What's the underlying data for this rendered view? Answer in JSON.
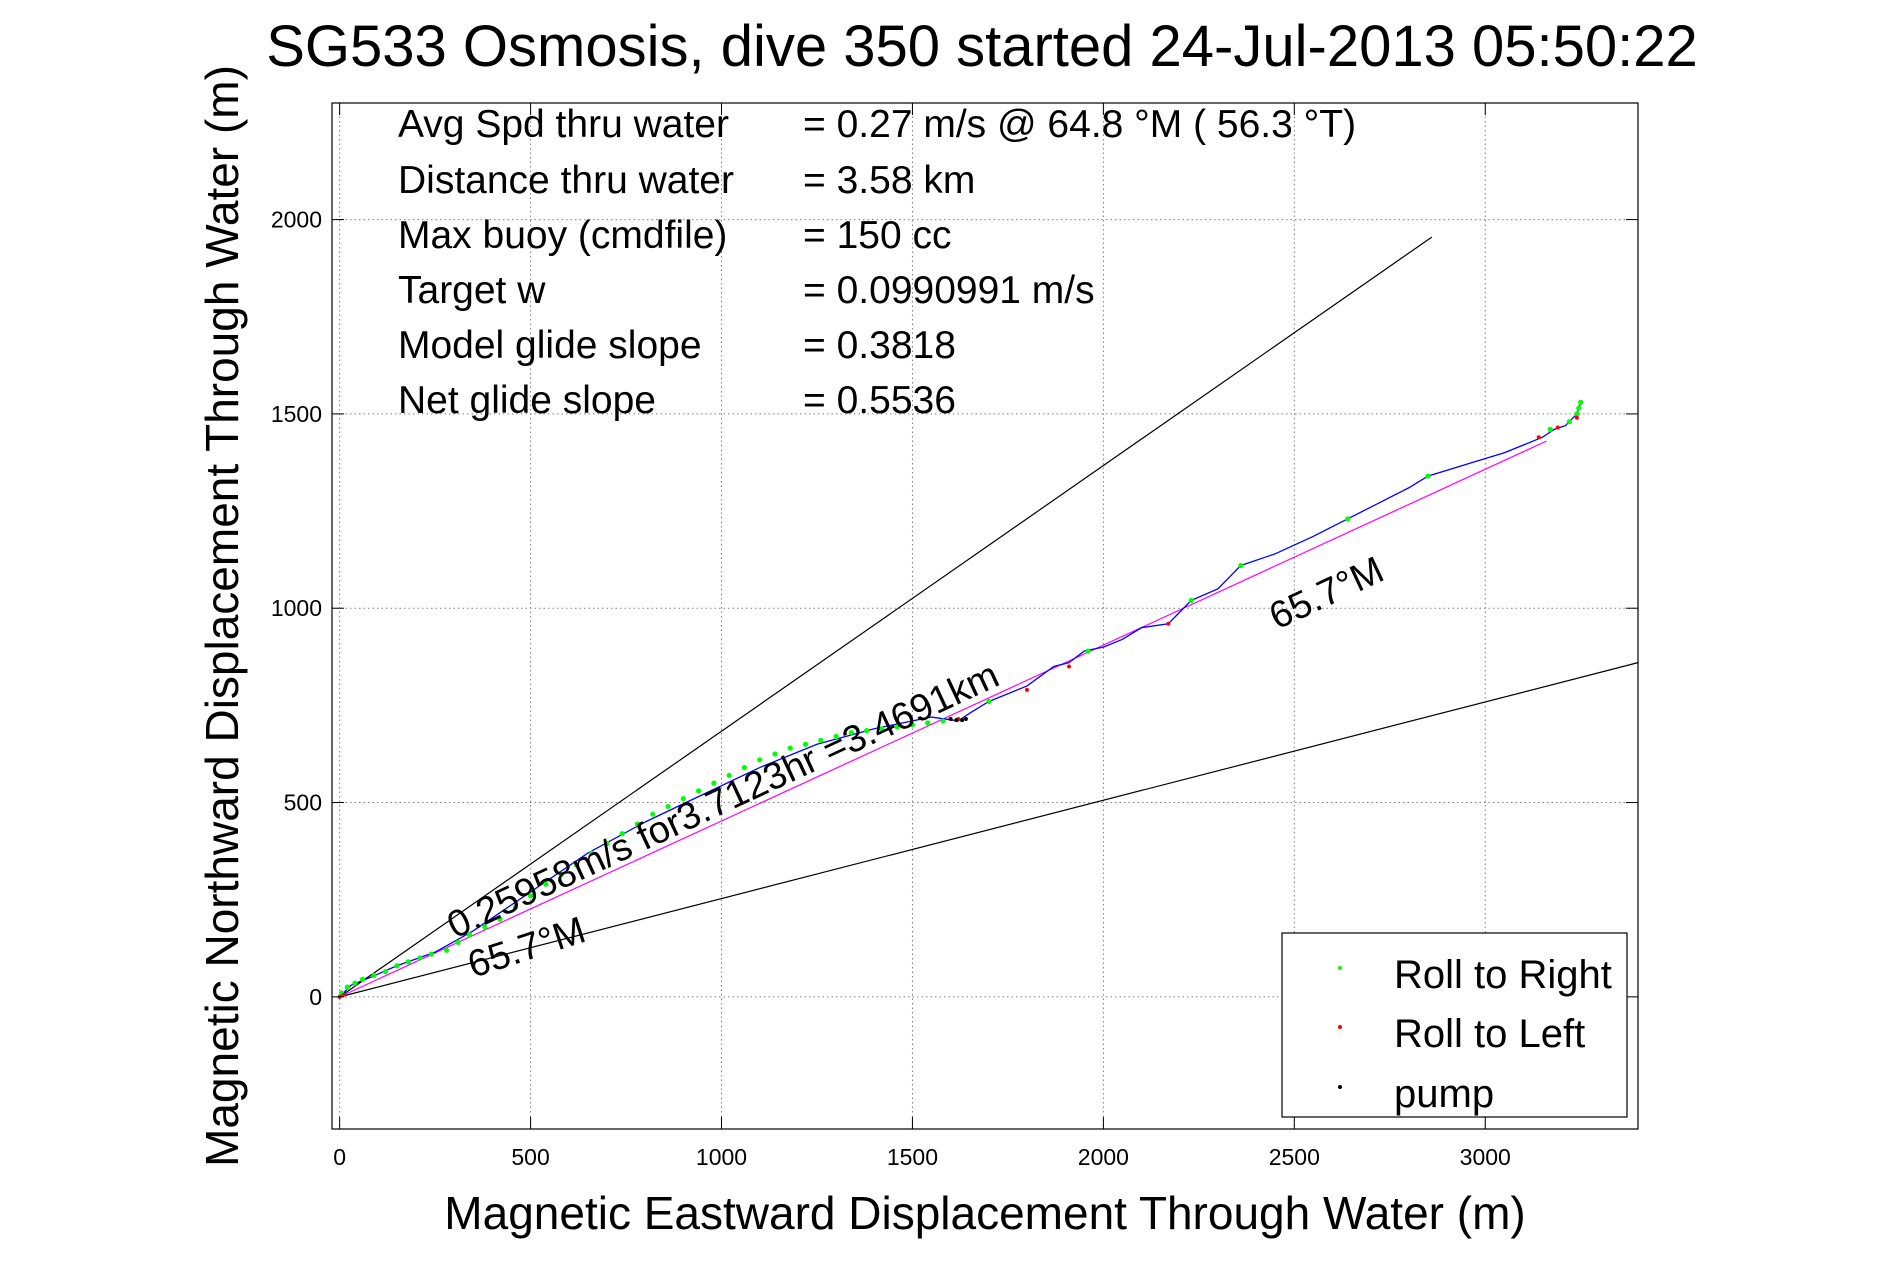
{
  "chart_data": {
    "type": "line",
    "title": "SG533 Osmosis, dive 350 started 24-Jul-2013 05:50:22",
    "xlabel": "Magnetic Eastward Displacement Through Water (m)",
    "ylabel": "Magnetic Northward Displacement Through Water (m)",
    "xlim": [
      -20,
      3400
    ],
    "ylim": [
      -340,
      2300
    ],
    "xticks": [
      0,
      500,
      1000,
      1500,
      2000,
      2500,
      3000
    ],
    "yticks": [
      0,
      500,
      1000,
      1500,
      2000
    ],
    "grid": true,
    "legend_position": "bottom-right",
    "info_lines": [
      {
        "label": "Avg Spd thru water",
        "value": "=  0.27 m/s @  64.8 °M ( 56.3 °T)"
      },
      {
        "label": "Distance thru water",
        "value": "=  3.58 km"
      },
      {
        "label": "Max buoy (cmdfile)",
        "value": "= 150 cc"
      },
      {
        "label": "Target w",
        "value": "= 0.0990991 m/s"
      },
      {
        "label": "Model glide slope",
        "value": "= 0.3818"
      },
      {
        "label": "Net glide slope",
        "value": "= 0.5536"
      }
    ],
    "annotations": {
      "speed": "0.25958m/s for3.7123hr =3.4691km",
      "heading_upper": "65.7°M",
      "heading_lower": "65.7°M"
    },
    "reference_lines": [
      {
        "color": "#000000",
        "x": [
          0,
          2860
        ],
        "y": [
          0,
          1955
        ]
      },
      {
        "color": "#000000",
        "x": [
          0,
          3400
        ],
        "y": [
          0,
          860
        ]
      },
      {
        "color": "#ff00ff",
        "x": [
          0,
          3160
        ],
        "y": [
          0,
          1430
        ]
      }
    ],
    "series": [
      {
        "name": "track",
        "color": "#0000ff",
        "x": [
          0,
          30,
          80,
          150,
          250,
          350,
          500,
          650,
          800,
          950,
          1100,
          1250,
          1400,
          1550,
          1620,
          1650,
          1700,
          1800,
          1870,
          1910,
          1950,
          2000,
          2050,
          2100,
          2170,
          2200,
          2230,
          2300,
          2360,
          2450,
          2550,
          2640,
          2720,
          2800,
          2850,
          2950,
          3050,
          3150,
          3180,
          3210,
          3240,
          3250
        ],
        "y": [
          0,
          30,
          50,
          80,
          115,
          170,
          270,
          370,
          450,
          520,
          590,
          650,
          690,
          720,
          710,
          730,
          760,
          800,
          850,
          860,
          890,
          900,
          920,
          950,
          960,
          990,
          1020,
          1050,
          1110,
          1140,
          1185,
          1230,
          1270,
          1310,
          1340,
          1370,
          1400,
          1440,
          1460,
          1470,
          1500,
          1530
        ]
      },
      {
        "name": "Roll to Right",
        "color": "#00ff00",
        "x": [
          5,
          20,
          40,
          60,
          90,
          120,
          150,
          180,
          210,
          240,
          280,
          310,
          340,
          380,
          420,
          460,
          500,
          540,
          580,
          620,
          660,
          700,
          740,
          780,
          820,
          860,
          900,
          940,
          980,
          1020,
          1060,
          1100,
          1140,
          1180,
          1220,
          1260,
          1300,
          1340,
          1380,
          1420,
          1460,
          1500,
          1540,
          1580,
          1700,
          1960,
          2230,
          2360,
          2640,
          2850,
          3170,
          3220,
          3240,
          3245,
          3250
        ],
        "y": [
          10,
          25,
          35,
          45,
          55,
          65,
          80,
          90,
          100,
          110,
          120,
          140,
          160,
          180,
          200,
          230,
          260,
          290,
          315,
          340,
          370,
          395,
          420,
          445,
          470,
          490,
          510,
          530,
          550,
          570,
          590,
          610,
          625,
          640,
          650,
          660,
          670,
          680,
          685,
          690,
          695,
          700,
          705,
          710,
          760,
          890,
          1020,
          1110,
          1230,
          1340,
          1460,
          1480,
          1500,
          1515,
          1530
        ]
      },
      {
        "name": "Roll to Left",
        "color": "#ff0000",
        "x": [
          0,
          10,
          1620,
          1800,
          1910,
          2170,
          3140,
          3190,
          3240
        ],
        "y": [
          0,
          5,
          715,
          790,
          850,
          960,
          1440,
          1465,
          1490
        ]
      },
      {
        "name": "pump",
        "color": "#000000",
        "x": [
          1600,
          1615,
          1630,
          1640
        ],
        "y": [
          715,
          712,
          712,
          715
        ]
      }
    ],
    "legend": [
      {
        "label": "Roll to Right",
        "color": "#00ff00"
      },
      {
        "label": "Roll to Left",
        "color": "#ff0000"
      },
      {
        "label": "pump",
        "color": "#000000"
      }
    ]
  }
}
